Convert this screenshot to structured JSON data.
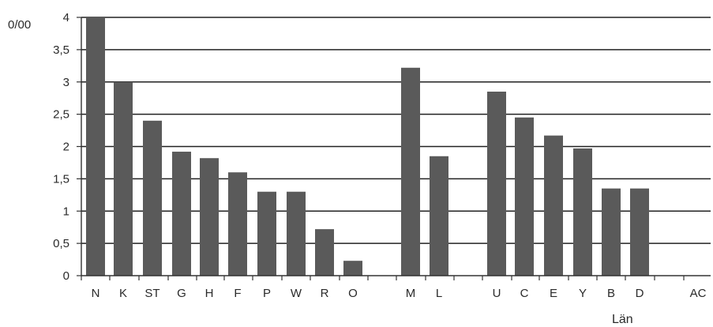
{
  "chart_data": {
    "type": "bar",
    "ylabel": "0/00",
    "xlabel": "Län",
    "ylim": [
      0,
      4
    ],
    "y_ticks": [
      "0",
      "0,5",
      "1",
      "1,5",
      "2",
      "2,5",
      "3",
      "3,5",
      "4"
    ],
    "grid": true,
    "colors": {
      "bar": "#5a5a5a",
      "grid": "#222222",
      "axis": "#333333",
      "text": "#2a2a2a"
    },
    "categories": [
      "N",
      "K",
      "ST",
      "G",
      "H",
      "F",
      "P",
      "W",
      "R",
      "O",
      "M",
      "L",
      "U",
      "C",
      "E",
      "Y",
      "B",
      "D",
      "AC"
    ],
    "values": [
      4.0,
      3.0,
      2.4,
      1.92,
      1.82,
      1.6,
      1.3,
      1.3,
      0.72,
      0.23,
      3.22,
      1.85,
      2.85,
      2.45,
      2.17,
      1.97,
      1.35,
      1.35,
      null
    ]
  }
}
